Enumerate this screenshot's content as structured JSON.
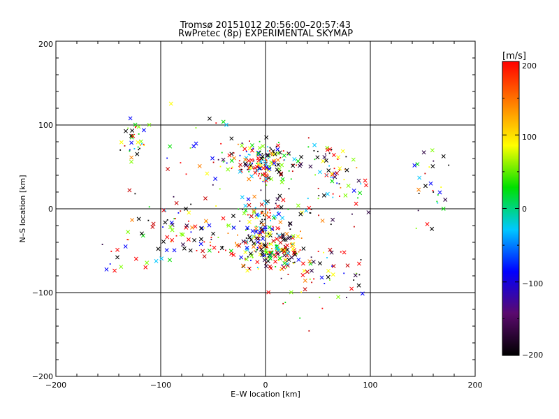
{
  "chart_data": {
    "type": "scatter",
    "title": "Tromsø 20151012 20:56:00–20:57:43",
    "subtitle": "RwPretec (8p) EXPERIMENTAL SKYMAP",
    "xlabel": "E–W location [km]",
    "ylabel": "N–S location [km]",
    "xlim": [
      -200,
      200
    ],
    "ylim": [
      -200,
      200
    ],
    "x_ticks": [
      "−200",
      "−100",
      "0",
      "100",
      "200"
    ],
    "y_ticks": [
      "−200",
      "−100",
      "0",
      "100",
      "200"
    ],
    "grid": "every 100 km",
    "markers": [
      "cross",
      "dot"
    ],
    "colorbar": {
      "label": "[m/s]",
      "range": [
        -200,
        200
      ],
      "ticks": [
        "200",
        "100",
        "0",
        "−100",
        "−200"
      ],
      "colors": [
        "#000000",
        "#5b0a6e",
        "#0000ff",
        "#00c8ff",
        "#00e000",
        "#ffff00",
        "#ff8000",
        "#ff0000"
      ]
    },
    "clusters": [
      {
        "x": 0,
        "y": 55,
        "sx": 14,
        "sy": 12,
        "n": 170
      },
      {
        "x": 0,
        "y": -35,
        "sx": 14,
        "sy": 22,
        "n": 220
      },
      {
        "x": 18,
        "y": -55,
        "sx": 9,
        "sy": 10,
        "n": 70
      },
      {
        "x": -125,
        "y": 80,
        "sx": 7,
        "sy": 10,
        "n": 35
      },
      {
        "x": 70,
        "y": 35,
        "sx": 12,
        "sy": 16,
        "n": 30
      },
      {
        "x": 160,
        "y": 25,
        "sx": 10,
        "sy": 20,
        "n": 28
      },
      {
        "x": 55,
        "y": 65,
        "sx": 14,
        "sy": 10,
        "n": 22
      },
      {
        "x": -75,
        "y": -25,
        "sx": 26,
        "sy": 22,
        "n": 85
      },
      {
        "x": 55,
        "y": -70,
        "sx": 22,
        "sy": 28,
        "n": 55
      },
      {
        "x": -55,
        "y": 60,
        "sx": 25,
        "sy": 30,
        "n": 30
      },
      {
        "x": 40,
        "y": 20,
        "sx": 35,
        "sy": 25,
        "n": 40
      },
      {
        "x": -135,
        "y": -60,
        "sx": 16,
        "sy": 14,
        "n": 12
      }
    ]
  }
}
